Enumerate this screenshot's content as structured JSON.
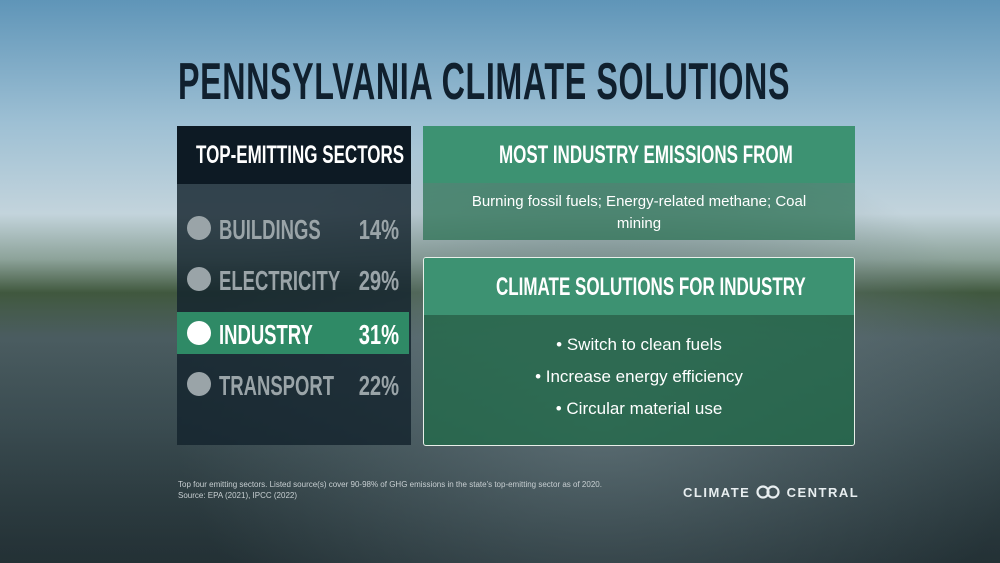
{
  "title": "PENNSYLVANIA CLIMATE SOLUTIONS",
  "sectors": {
    "heading": "TOP-EMITTING SECTORS",
    "rows": [
      {
        "label": "BUILDINGS",
        "share": "14%"
      },
      {
        "label": "ELECTRICITY",
        "share": "29%"
      },
      {
        "label": "INDUSTRY",
        "share": "31%"
      },
      {
        "label": "TRANSPORT",
        "share": "22%"
      }
    ]
  },
  "emissions": {
    "heading": "MOST INDUSTRY EMISSIONS FROM",
    "body": "Burning fossil fuels; Energy-related methane; Coal mining"
  },
  "solutions": {
    "heading": "CLIMATE SOLUTIONS FOR INDUSTRY",
    "items": [
      "• Switch to clean fuels",
      "• Increase energy efficiency",
      "• Circular material use"
    ]
  },
  "footnote": [
    "Top four emitting sectors. Listed source(s) cover 90-98% of GHG emissions in the state's top-emitting sector as of 2020.",
    "Source: EPA (2021), IPCC (2022)"
  ],
  "logo": {
    "left": "CLIMATE",
    "right": "CENTRAL"
  }
}
